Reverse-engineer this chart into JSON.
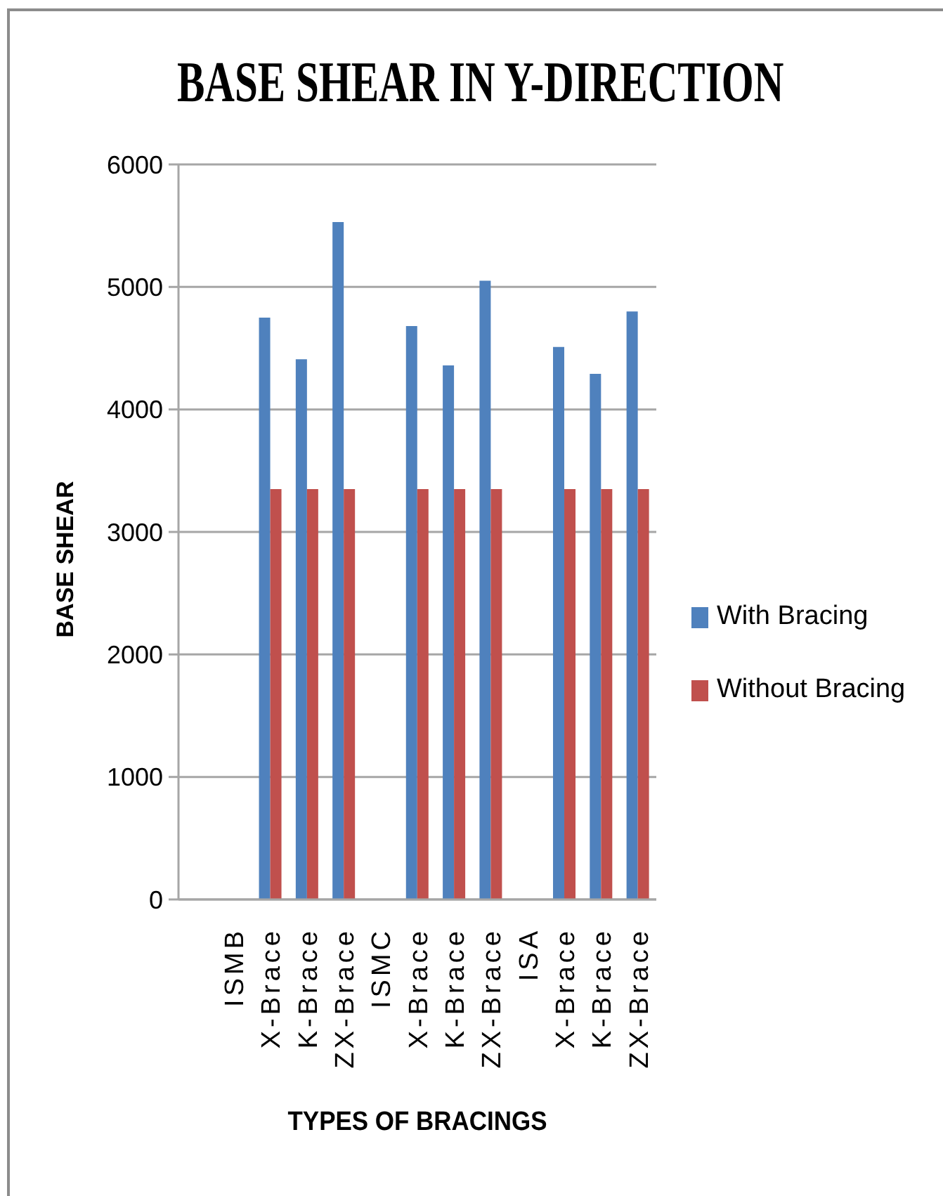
{
  "chart_data": {
    "type": "bar",
    "title": "BASE SHEAR IN Y-DIRECTION",
    "xlabel": "TYPES OF BRACINGS",
    "ylabel": "BASE SHEAR",
    "categories": [
      null,
      "ISMB",
      "X-Brace",
      "K-Brace",
      "ZX-Brace",
      "ISMC",
      "X-Brace",
      "K-Brace",
      "ZX-Brace",
      "ISA",
      "X-Brace",
      "K-Brace",
      "ZX-Brace"
    ],
    "series": [
      {
        "name": "With Bracing",
        "color": "#4f81bd",
        "values": [
          null,
          null,
          4750,
          4410,
          5530,
          null,
          4680,
          4360,
          5050,
          null,
          4510,
          4290,
          4800
        ]
      },
      {
        "name": "Without Bracing",
        "color": "#c0504d",
        "values": [
          null,
          null,
          3350,
          3350,
          3350,
          null,
          3350,
          3350,
          3350,
          null,
          3350,
          3350,
          3350
        ]
      }
    ],
    "ylim": [
      0,
      6000
    ],
    "yticks": [
      0,
      1000,
      2000,
      3000,
      4000,
      5000,
      6000
    ],
    "grid": "y",
    "legend": "right"
  }
}
